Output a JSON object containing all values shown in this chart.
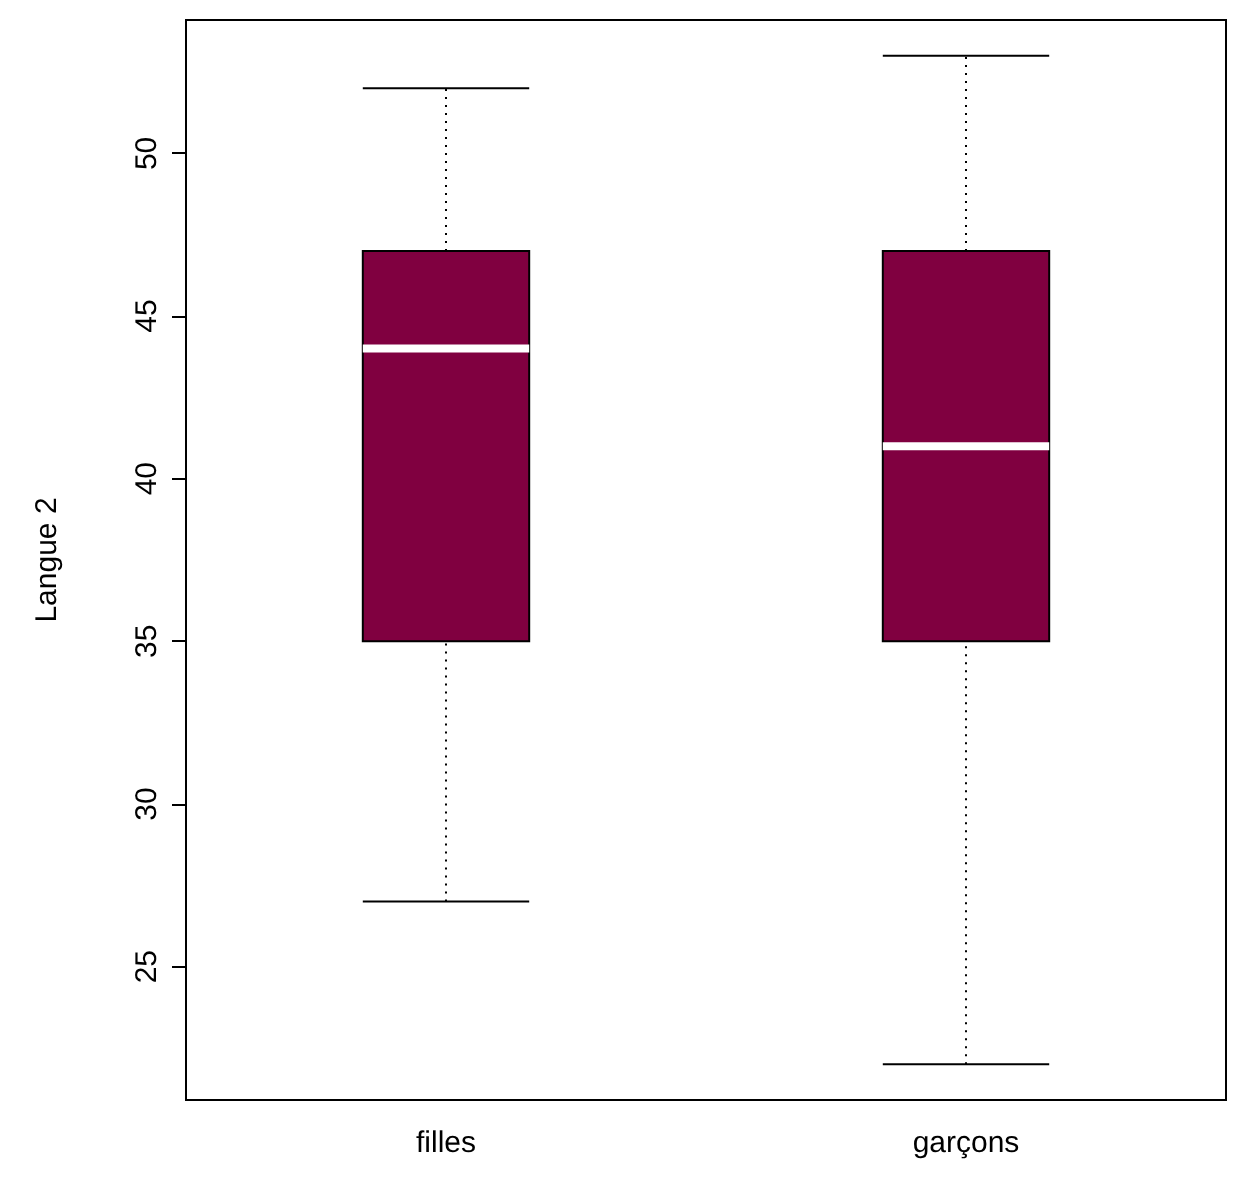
{
  "chart_data": {
    "type": "box",
    "ylabel": "Langue 2",
    "categories": [
      "filles",
      "garçons"
    ],
    "color": "#800040",
    "ylim": [
      20.9,
      54.1
    ],
    "yticks": [
      25,
      30,
      35,
      40,
      45,
      50
    ],
    "boxes": [
      {
        "low": 27,
        "q1": 35,
        "median": 44,
        "q3": 47,
        "high": 52
      },
      {
        "low": 22,
        "q1": 35,
        "median": 41,
        "q3": 47,
        "high": 53
      }
    ]
  }
}
